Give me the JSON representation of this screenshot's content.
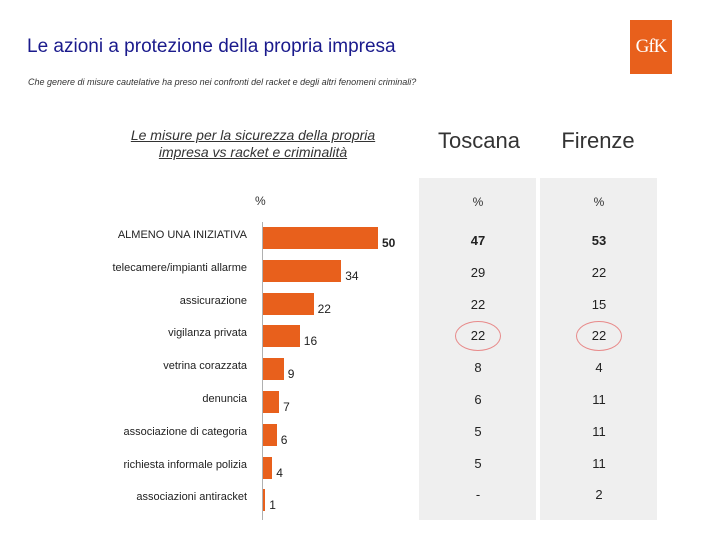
{
  "title": "Le azioni a protezione della  propria impresa",
  "subtitle": "Che genere di misure cautelative ha preso nei confronti del racket e degli altri fenomeni criminali?",
  "logo_text": "GfK",
  "chart_heading": "Le misure per la sicurezza della propria impresa vs racket e criminalità",
  "percent_label": "%",
  "table": {
    "columns": [
      {
        "name": "Toscana",
        "unit": "%"
      },
      {
        "name": "Firenze",
        "unit": "%"
      }
    ],
    "rows": [
      {
        "toscana": "47",
        "firenze": "53",
        "bold": true
      },
      {
        "toscana": "29",
        "firenze": "22"
      },
      {
        "toscana": "22",
        "firenze": "15"
      },
      {
        "toscana": "22",
        "firenze": "22",
        "circled": true
      },
      {
        "toscana": "8",
        "firenze": "4"
      },
      {
        "toscana": "6",
        "firenze": "11"
      },
      {
        "toscana": "5",
        "firenze": "11"
      },
      {
        "toscana": "5",
        "firenze": "11"
      },
      {
        "toscana": "-",
        "firenze": "2"
      }
    ]
  },
  "chart_data": {
    "type": "bar",
    "orientation": "horizontal",
    "title": "Le misure per la sicurezza della propria impresa vs racket e criminalità",
    "xlabel": "%",
    "categories": [
      "ALMENO UNA INIZIATIVA",
      "telecamere/impianti allarme",
      "assicurazione",
      "vigilanza privata",
      "vetrina corazzata",
      "denuncia",
      "associazione di categoria",
      "richiesta informale polizia",
      "associazioni antiracket"
    ],
    "values": [
      50,
      34,
      22,
      16,
      9,
      7,
      6,
      4,
      1
    ],
    "value_labels": [
      "50",
      "34",
      "22",
      "16",
      "9",
      "7",
      "6",
      "4",
      "1"
    ],
    "xlim": [
      0,
      55
    ],
    "color": "#e8601c",
    "grid": false
  }
}
